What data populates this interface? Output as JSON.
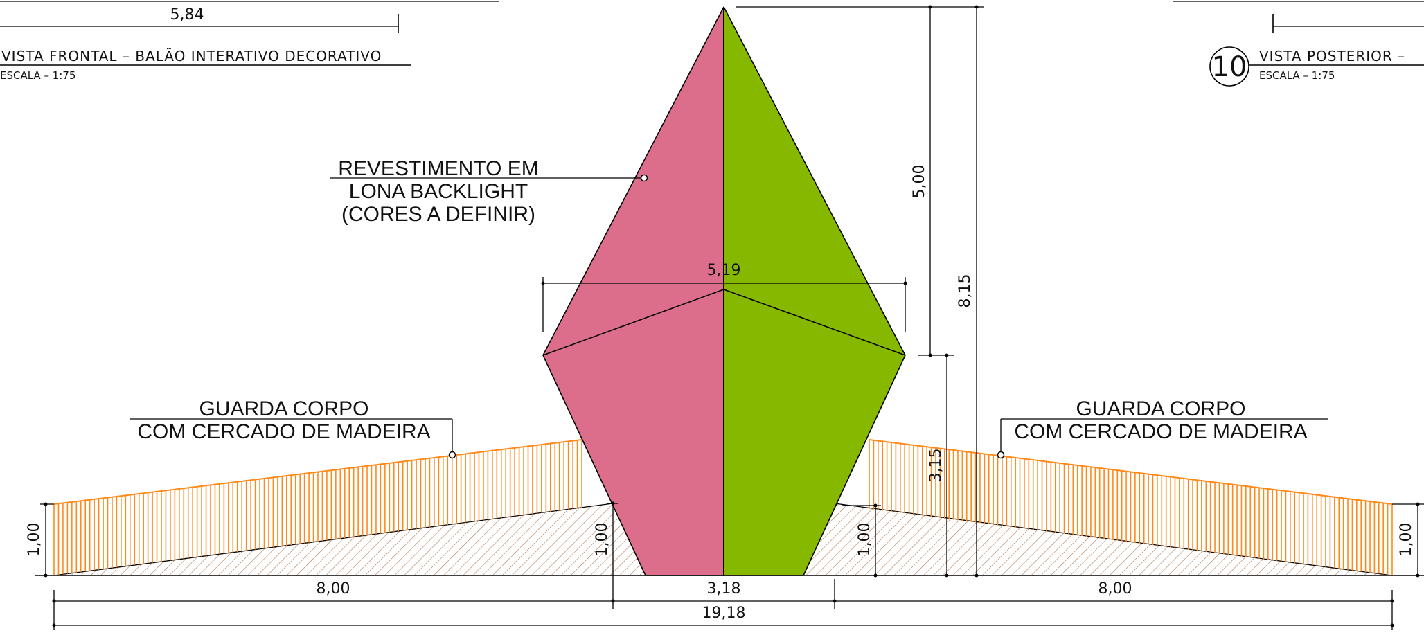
{
  "colors": {
    "balloon_left": "#dc6e8b",
    "balloon_right": "#87b800",
    "railing": "#ff8a1a",
    "hatch": "#b07a52"
  },
  "views": {
    "front": {
      "title": "VISTA FRONTAL – BALÃO INTERATIVO DECORATIVO",
      "scale": "ESCALA – 1:75",
      "top_dimension": "5,84"
    },
    "rear": {
      "number": "10",
      "title": "VISTA POSTERIOR –",
      "scale": "ESCALA – 1:75"
    }
  },
  "callouts": {
    "covering": [
      "REVESTIMENTO EM",
      "LONA BACKLIGHT",
      "(CORES A DEFINIR)"
    ],
    "railing_left": [
      "GUARDA CORPO",
      "COM CERCADO DE MADEIRA"
    ],
    "railing_right": [
      "GUARDA CORPO",
      "COM CERCADO DE MADEIRA"
    ]
  },
  "dimensions": {
    "balloon_width": "5,19",
    "upper_height": "5,00",
    "total_height": "8,15",
    "lower_height": "3,15",
    "railing_left_height": "1,00",
    "railing_right_height": "1,00",
    "inner_left_height": "1,00",
    "inner_right_height": "1,00",
    "left_length": "8,00",
    "center_length": "3,18",
    "right_length": "8,00",
    "overall_length": "19,18"
  }
}
